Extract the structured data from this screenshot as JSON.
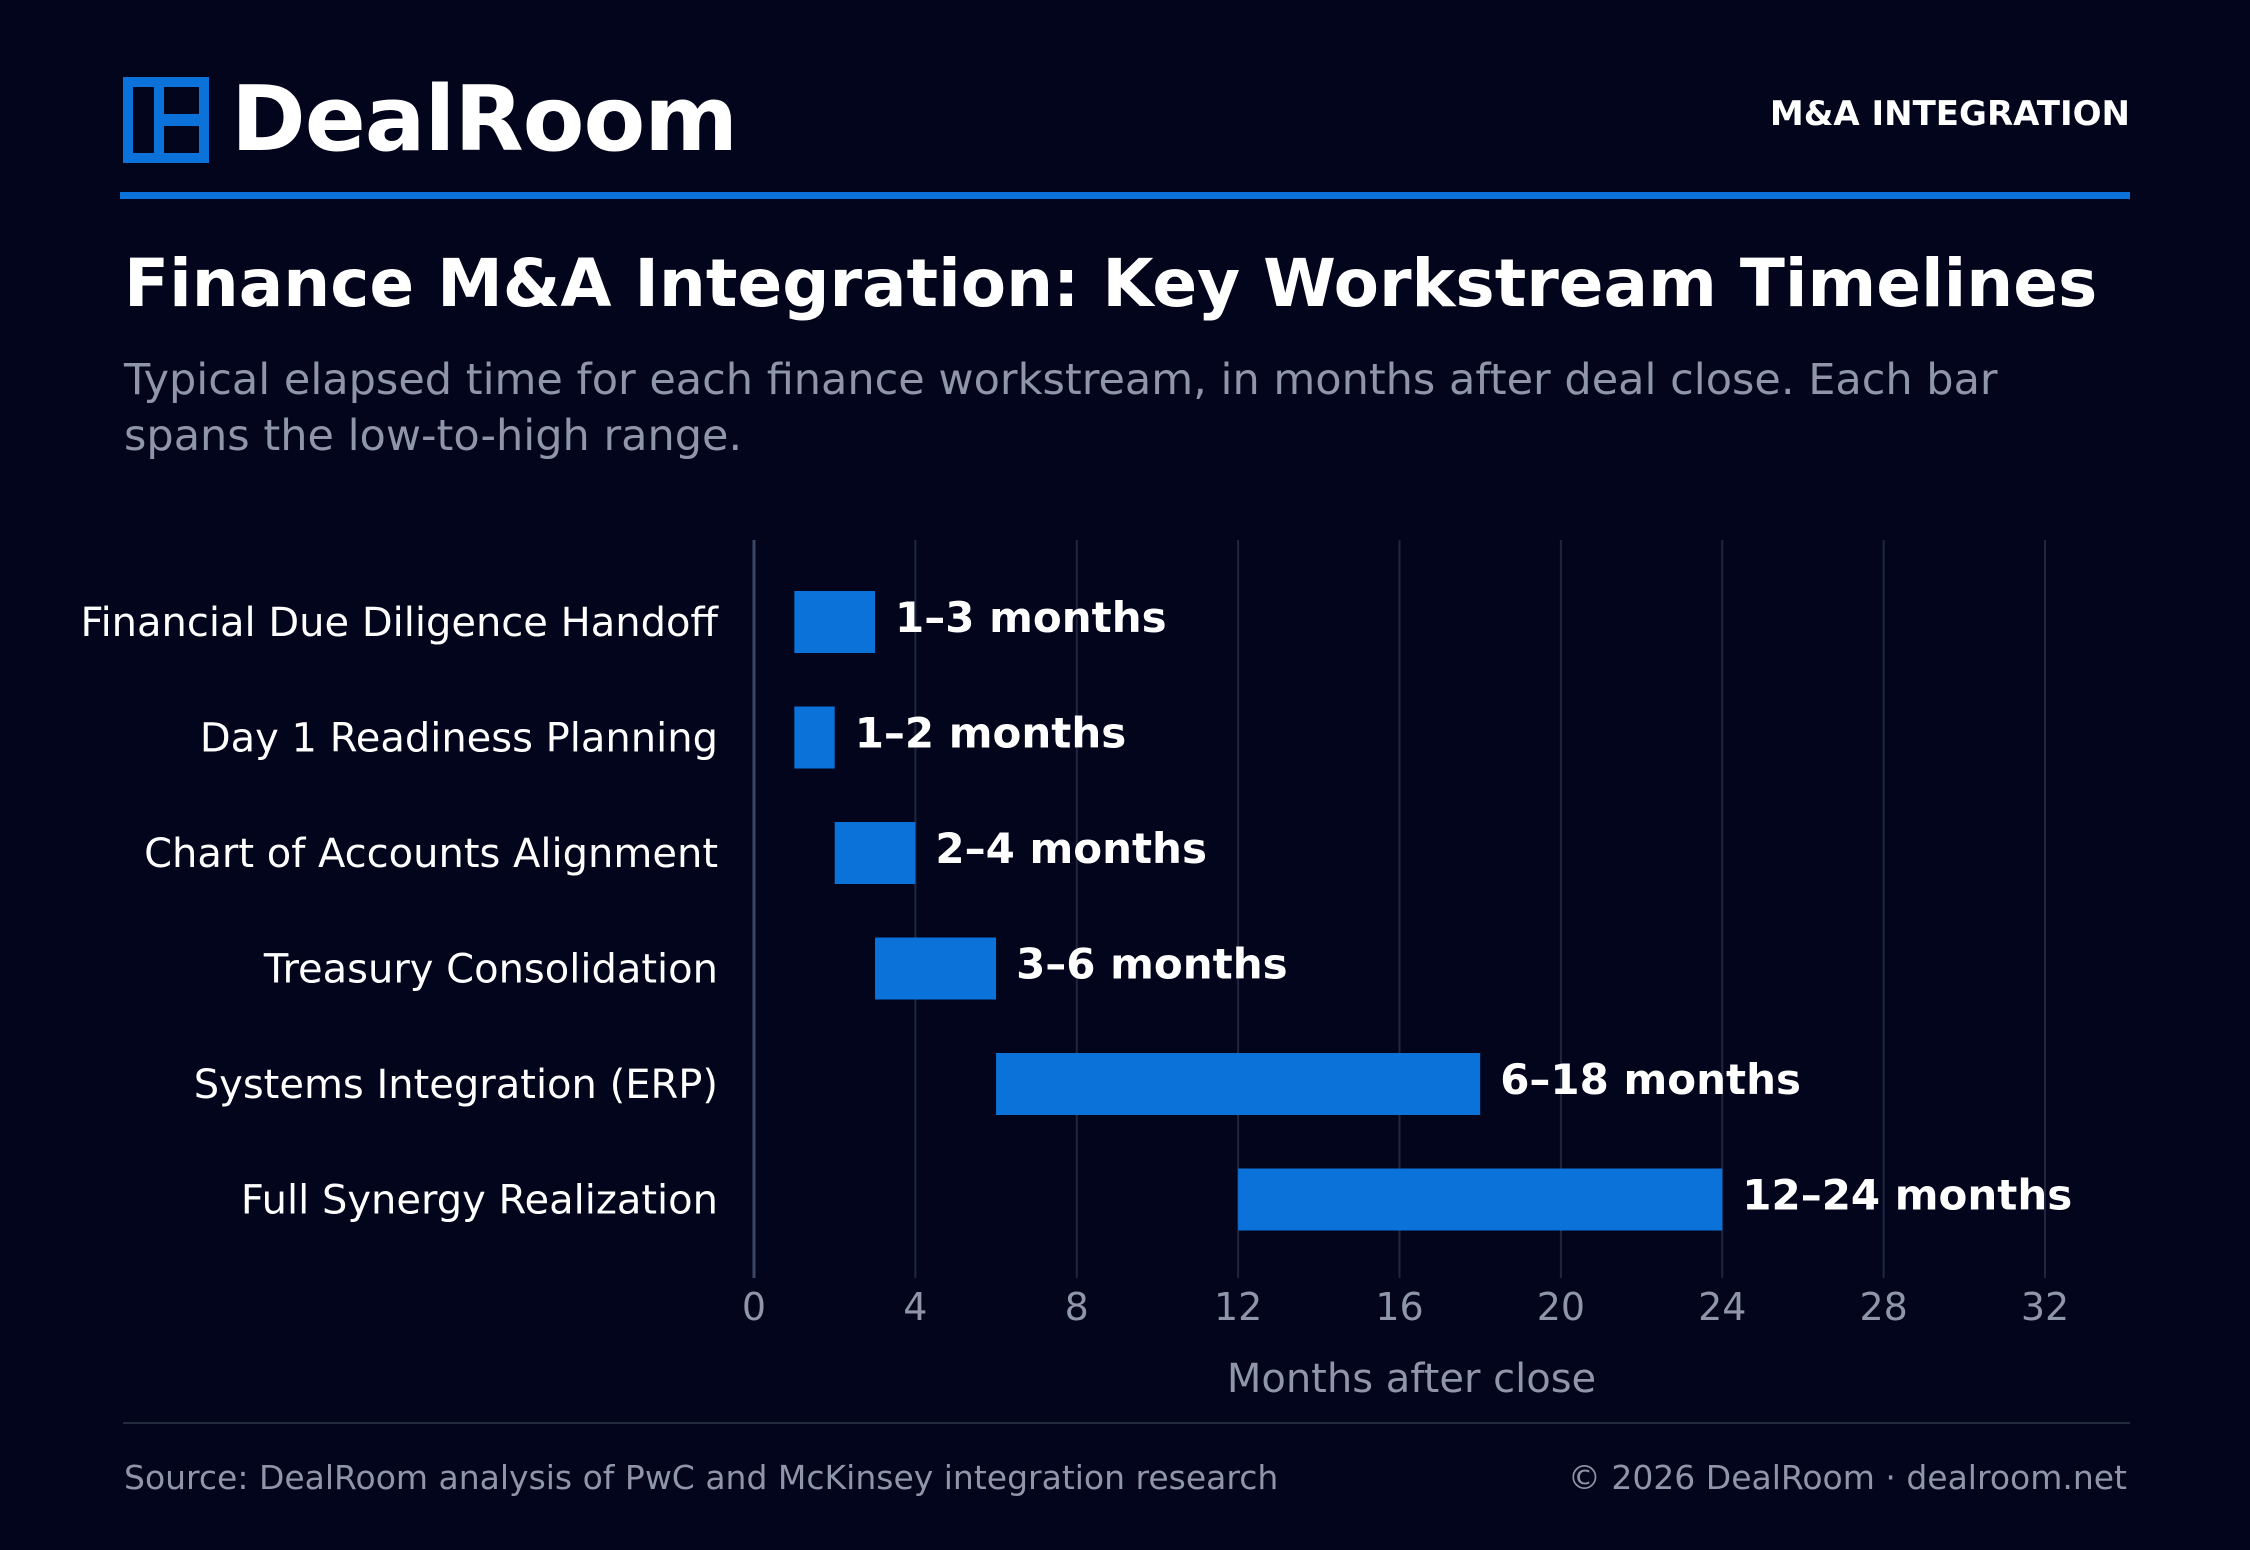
{
  "brand": {
    "name": "DealRoom",
    "section": "M&A INTEGRATION",
    "accent_color": "#0a72d9",
    "background_color": "#02051b"
  },
  "title": "Finance M&A Integration: Key Workstream Timelines",
  "subtitle_lines": [
    "Typical elapsed time for each finance workstream, in months after deal close. Each bar",
    "spans the low-to-high range."
  ],
  "chart_data": {
    "type": "bar",
    "orientation": "horizontal-range",
    "categories": [
      "Financial Due Diligence Handoff",
      "Day 1 Readiness Planning",
      "Chart of Accounts Alignment",
      "Treasury Consolidation",
      "Systems Integration (ERP)",
      "Full Synergy Realization"
    ],
    "ranges": [
      [
        1,
        3
      ],
      [
        1,
        2
      ],
      [
        2,
        4
      ],
      [
        3,
        6
      ],
      [
        6,
        18
      ],
      [
        12,
        24
      ]
    ],
    "data_labels": [
      "1–3 months",
      "1–2 months",
      "2–4 months",
      "3–6 months",
      "6–18 months",
      "12–24 months"
    ],
    "xlabel": "Months after close",
    "xlim": [
      0,
      32
    ],
    "xticks": [
      "0",
      "4",
      "8",
      "12",
      "16",
      "20",
      "24",
      "28",
      "32"
    ],
    "grid": true,
    "bar_color": "#0a72d9"
  },
  "footer": {
    "source": "Source: DealRoom analysis of PwC and McKinsey integration research",
    "copyright": "© 2026 DealRoom · dealroom.net"
  }
}
